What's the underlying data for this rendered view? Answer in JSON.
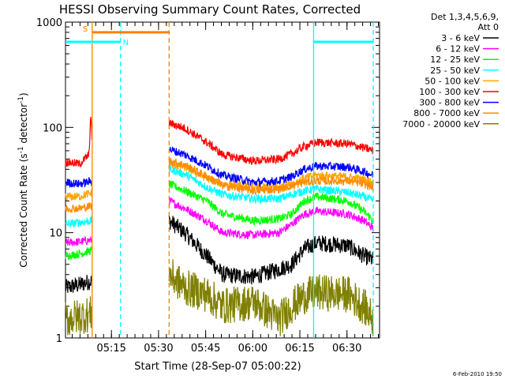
{
  "chart_data": {
    "type": "line",
    "title": "HESSI Observing Summary Count Rates, Corrected",
    "xlabel": "Start Time (28-Sep-07 05:00:22)",
    "ylabel_main": "Corrected Count Rate (s",
    "ylabel_sup": "-1",
    "ylabel_mid": " detector",
    "ylabel_end": ")",
    "y_scale": "log",
    "ylim": [
      1,
      1000
    ],
    "x_range_minutes_after_start": [
      0,
      100
    ],
    "x_ticks": [
      {
        "label": "05:15",
        "minutes": 14.63
      },
      {
        "label": "05:30",
        "minutes": 29.63
      },
      {
        "label": "05:45",
        "minutes": 44.63
      },
      {
        "label": "06:00",
        "minutes": 59.63
      },
      {
        "label": "06:15",
        "minutes": 74.63
      },
      {
        "label": "06:30",
        "minutes": 89.63
      }
    ],
    "y_ticks": [
      {
        "label": "1",
        "value": 1
      },
      {
        "label": "10",
        "value": 10
      },
      {
        "label": "100",
        "value": 100
      },
      {
        "label": "1000",
        "value": 1000
      }
    ],
    "legend_header": [
      "Det 1,3,4,5,6,9,",
      "Att 0"
    ],
    "legend_placement": "right",
    "series": [
      {
        "name": "3 - 6 keV",
        "color": "#000000",
        "points": [
          [
            0,
            3
          ],
          [
            4.5,
            3.2
          ],
          [
            8.5,
            3.5
          ],
          [
            33,
            13
          ],
          [
            38,
            10
          ],
          [
            45,
            6
          ],
          [
            50,
            4
          ],
          [
            60,
            3.8
          ],
          [
            68,
            4.5
          ],
          [
            72,
            5
          ],
          [
            76,
            7
          ],
          [
            80,
            8
          ],
          [
            90,
            7.5
          ],
          [
            95,
            6
          ],
          [
            98,
            5.5
          ]
        ]
      },
      {
        "name": "6 - 12 keV",
        "color": "#ff00ff",
        "points": [
          [
            0,
            8
          ],
          [
            4.5,
            8.2
          ],
          [
            8.5,
            8.5
          ],
          [
            33,
            20
          ],
          [
            38,
            17
          ],
          [
            45,
            13
          ],
          [
            50,
            10
          ],
          [
            60,
            9.5
          ],
          [
            68,
            10
          ],
          [
            72,
            12
          ],
          [
            76,
            15
          ],
          [
            80,
            16
          ],
          [
            90,
            15
          ],
          [
            95,
            13
          ],
          [
            98,
            11
          ]
        ]
      },
      {
        "name": "12 - 25 keV",
        "color": "#00ff00",
        "points": [
          [
            0,
            6
          ],
          [
            4.5,
            6.3
          ],
          [
            8.5,
            6.8
          ],
          [
            33,
            29
          ],
          [
            38,
            25
          ],
          [
            45,
            20
          ],
          [
            50,
            15
          ],
          [
            60,
            13
          ],
          [
            68,
            13.5
          ],
          [
            72,
            15
          ],
          [
            76,
            20
          ],
          [
            80,
            22
          ],
          [
            90,
            20
          ],
          [
            95,
            16
          ],
          [
            98,
            13
          ]
        ]
      },
      {
        "name": "25 - 50 keV",
        "color": "#00ffff",
        "points": [
          [
            0,
            12
          ],
          [
            4.5,
            12.5
          ],
          [
            8.5,
            13
          ],
          [
            33,
            40
          ],
          [
            38,
            36
          ],
          [
            45,
            27
          ],
          [
            50,
            23
          ],
          [
            60,
            21
          ],
          [
            68,
            21
          ],
          [
            72,
            23
          ],
          [
            76,
            25
          ],
          [
            80,
            26
          ],
          [
            90,
            24
          ],
          [
            95,
            22
          ],
          [
            98,
            20
          ]
        ]
      },
      {
        "name": "50 - 100 keV",
        "color": "#ffa500",
        "points": [
          [
            0,
            22
          ],
          [
            4.5,
            22
          ],
          [
            8.5,
            24
          ],
          [
            33,
            45
          ],
          [
            38,
            42
          ],
          [
            45,
            33
          ],
          [
            50,
            29
          ],
          [
            60,
            27
          ],
          [
            68,
            27
          ],
          [
            72,
            29
          ],
          [
            76,
            33
          ],
          [
            80,
            35
          ],
          [
            90,
            34
          ],
          [
            95,
            32
          ],
          [
            98,
            30
          ]
        ]
      },
      {
        "name": "100 - 300 keV",
        "color": "#ff0000",
        "points": [
          [
            0,
            47
          ],
          [
            4.5,
            45
          ],
          [
            7.5,
            55
          ],
          [
            8,
            130
          ],
          [
            8.5,
            70
          ],
          [
            33,
            110
          ],
          [
            38,
            98
          ],
          [
            45,
            72
          ],
          [
            50,
            55
          ],
          [
            60,
            48
          ],
          [
            68,
            50
          ],
          [
            72,
            56
          ],
          [
            76,
            66
          ],
          [
            80,
            72
          ],
          [
            90,
            70
          ],
          [
            95,
            64
          ],
          [
            98,
            60
          ]
        ]
      },
      {
        "name": "300 - 800 keV",
        "color": "#0000ff",
        "points": [
          [
            0,
            30
          ],
          [
            4.5,
            29
          ],
          [
            8.5,
            31
          ],
          [
            33,
            62
          ],
          [
            38,
            55
          ],
          [
            45,
            43
          ],
          [
            50,
            35
          ],
          [
            60,
            30
          ],
          [
            68,
            31
          ],
          [
            72,
            34
          ],
          [
            76,
            40
          ],
          [
            80,
            43
          ],
          [
            90,
            42
          ],
          [
            95,
            38
          ],
          [
            98,
            35
          ]
        ]
      },
      {
        "name": "800 - 7000 keV",
        "color": "#ff8c00",
        "points": [
          [
            0,
            17
          ],
          [
            4.5,
            17
          ],
          [
            8.5,
            18
          ],
          [
            33,
            48
          ],
          [
            38,
            44
          ],
          [
            45,
            34
          ],
          [
            50,
            28
          ],
          [
            60,
            25
          ],
          [
            68,
            26
          ],
          [
            72,
            28
          ],
          [
            76,
            30
          ],
          [
            80,
            31
          ],
          [
            90,
            31
          ],
          [
            95,
            29
          ],
          [
            98,
            27
          ]
        ]
      },
      {
        "name": "7000 - 20000 keV",
        "color": "#808000",
        "points": [
          [
            0,
            1.5
          ],
          [
            4.5,
            1.6
          ],
          [
            8.5,
            1.7
          ],
          [
            33,
            4
          ],
          [
            38,
            3
          ],
          [
            45,
            2.6
          ],
          [
            50,
            2
          ],
          [
            60,
            2.2
          ],
          [
            68,
            1.5
          ],
          [
            72,
            2
          ],
          [
            76,
            2.5
          ],
          [
            80,
            2.7
          ],
          [
            90,
            2.6
          ],
          [
            95,
            2
          ],
          [
            98,
            1.5
          ]
        ]
      }
    ],
    "flags": [
      {
        "label": "S",
        "color": "#ff8000",
        "level": 800,
        "start_minutes": 8.5,
        "end_minutes": 33
      },
      {
        "label": "N",
        "color": "#00ffff",
        "level": 650,
        "start_minutes": 0,
        "end_minutes": 17.5
      },
      {
        "label": "",
        "color": "#00ffff",
        "level": 650,
        "start_minutes": 79,
        "end_minutes": 98
      }
    ],
    "vertical_lines": [
      {
        "minutes": 8.5,
        "color": "#ff8000",
        "style": "solid"
      },
      {
        "minutes": 17.5,
        "color": "#00ffff",
        "style": "dashed"
      },
      {
        "minutes": 33,
        "color": "#ff8000",
        "style": "dashed"
      },
      {
        "minutes": 79,
        "color": "#00ffff",
        "style": "solid"
      },
      {
        "minutes": 98,
        "color": "#00ffff",
        "style": "dashed"
      }
    ],
    "data_gap_minutes": [
      8.5,
      33
    ]
  },
  "footer": {
    "timestamp": "6-Feb-2010 19:50"
  }
}
